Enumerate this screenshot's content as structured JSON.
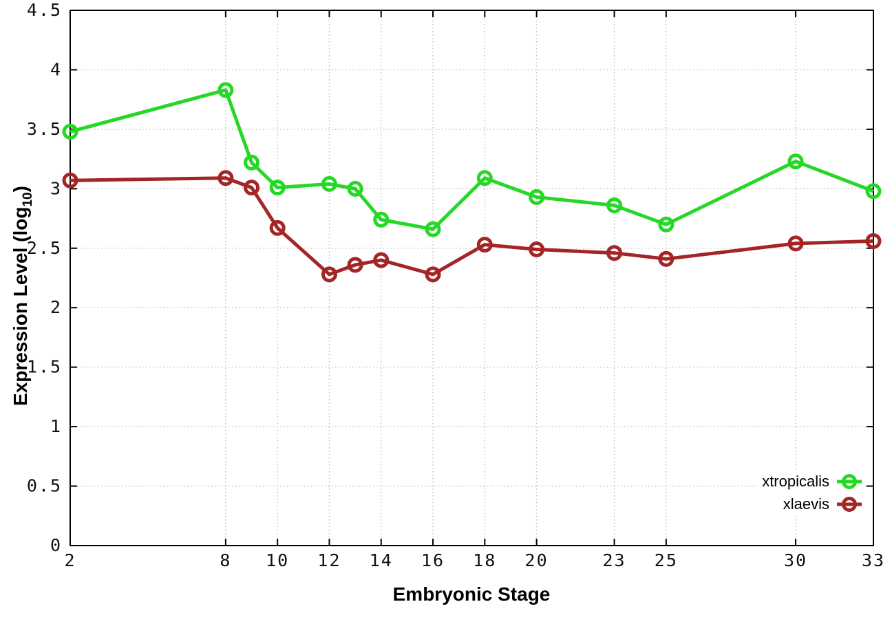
{
  "figure": {
    "background": "#ffffff",
    "ylabel_prefix": "Expression Level (log",
    "ylabel_sub": "10",
    "ylabel_suffix": ")"
  },
  "chart_data": {
    "type": "line",
    "title": "",
    "xlabel": "Embryonic Stage",
    "ylabel": "Expression Level (log10)",
    "xlim": [
      2,
      33
    ],
    "ylim": [
      0,
      4.5
    ],
    "x_tick_labels": [
      2,
      8,
      10,
      12,
      14,
      16,
      18,
      20,
      23,
      25,
      30,
      33
    ],
    "y_tick_labels": [
      "0",
      "0.5",
      "1",
      "1.5",
      "2",
      "2.5",
      "3",
      "3.5",
      "4",
      "4.5"
    ],
    "grid": true,
    "legend_position": "bottom-right-inside",
    "marker": "open-circle",
    "x": [
      2,
      8,
      9,
      10,
      12,
      13,
      14,
      16,
      18,
      20,
      23,
      25,
      30,
      33
    ],
    "series": [
      {
        "name": "xtropicalis",
        "color": "#25d825",
        "values": [
          3.48,
          3.83,
          3.22,
          3.01,
          3.04,
          3.0,
          2.74,
          2.66,
          3.09,
          2.93,
          2.86,
          2.7,
          3.23,
          2.98
        ]
      },
      {
        "name": "xlaevis",
        "color": "#a42525",
        "values": [
          3.07,
          3.09,
          3.01,
          2.67,
          2.28,
          2.36,
          2.4,
          2.28,
          2.53,
          2.49,
          2.46,
          2.41,
          2.54,
          2.56
        ]
      }
    ]
  }
}
